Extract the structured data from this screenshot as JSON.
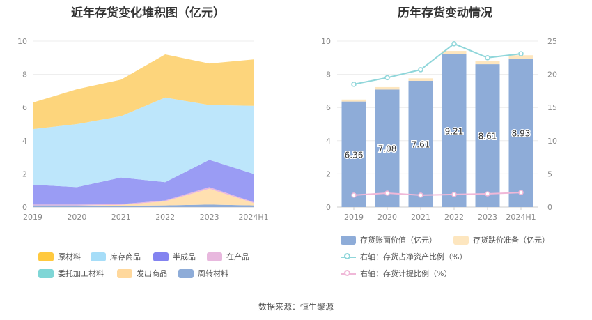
{
  "left_title": "近年存货变化堆积图（亿元）",
  "right_title": "历年存货变动情况",
  "source": "数据来源：恒生聚源",
  "chart_data": [
    {
      "type": "area",
      "stacked": true,
      "title": "近年存货变化堆积图（亿元）",
      "categories": [
        "2019",
        "2020",
        "2021",
        "2022",
        "2023",
        "2024H1"
      ],
      "ylim": [
        0,
        10
      ],
      "yticks": [
        0,
        2,
        4,
        6,
        8,
        10
      ],
      "grid": true,
      "legend_position": "bottom",
      "series": [
        {
          "name": "周转材料",
          "color": "#8eacd8",
          "values": [
            0.1,
            0.1,
            0.08,
            0.1,
            0.15,
            0.1
          ]
        },
        {
          "name": "发出商品",
          "color": "#ffe0b0",
          "values": [
            0.0,
            0.0,
            0.05,
            0.25,
            0.95,
            0.15
          ]
        },
        {
          "name": "委托加工材料",
          "color": "#7fd6d6",
          "values": [
            0.0,
            0.0,
            0.0,
            0.0,
            0.0,
            0.0
          ]
        },
        {
          "name": "在产品",
          "color": "#e8b8de",
          "values": [
            0.05,
            0.05,
            0.05,
            0.05,
            0.1,
            0.05
          ]
        },
        {
          "name": "半成品",
          "color": "#9a9cf4",
          "values": [
            1.2,
            1.05,
            1.6,
            1.1,
            1.65,
            1.7
          ]
        },
        {
          "name": "库存商品",
          "color": "#bde6fb",
          "values": [
            3.35,
            3.8,
            3.7,
            5.1,
            3.3,
            4.1
          ]
        },
        {
          "name": "原材料",
          "color": "#fdd57c",
          "values": [
            1.6,
            2.1,
            2.2,
            2.6,
            2.5,
            2.8
          ]
        }
      ],
      "legend_order": [
        "原材料",
        "库存商品",
        "半成品",
        "在产品",
        "委托加工材料",
        "发出商品",
        "周转材料"
      ],
      "legend_colors": {
        "原材料": "#ffc93f",
        "库存商品": "#a6ddf8",
        "半成品": "#8383f0",
        "在产品": "#e8b8de",
        "委托加工材料": "#7fd6d6",
        "发出商品": "#ffd89c",
        "周转材料": "#8eacd8"
      }
    },
    {
      "type": "bar",
      "stacked": true,
      "title": "历年存货变动情况",
      "categories": [
        "2019",
        "2020",
        "2021",
        "2022",
        "2023",
        "2024H1"
      ],
      "ylim": [
        0,
        10
      ],
      "yticks": [
        0,
        2,
        4,
        6,
        8,
        10
      ],
      "y2lim": [
        0,
        25
      ],
      "y2ticks": [
        0,
        5,
        10,
        15,
        20,
        25
      ],
      "grid": true,
      "legend_position": "bottom",
      "series": [
        {
          "name": "存货账面价值（亿元）",
          "type": "bar",
          "axis": "left",
          "color": "#8eacd8",
          "values": [
            6.36,
            7.08,
            7.61,
            9.21,
            8.61,
            8.93
          ],
          "labels": [
            "6.36",
            "7.08",
            "7.61",
            "9.21",
            "8.61",
            "8.93"
          ]
        },
        {
          "name": "存货跌价准备（亿元）",
          "type": "bar",
          "axis": "left",
          "color": "#fde6bf",
          "values": [
            0.12,
            0.15,
            0.15,
            0.2,
            0.18,
            0.22
          ]
        },
        {
          "name": "右轴：存货占净资产比例（%）",
          "type": "line",
          "axis": "right",
          "color": "#8fd6da",
          "values": [
            18.5,
            19.5,
            20.7,
            24.6,
            22.5,
            23.1
          ]
        },
        {
          "name": "右轴：存货计提比例（%）",
          "type": "line",
          "axis": "right",
          "color": "#f0b8d8",
          "values": [
            1.8,
            2.1,
            1.8,
            1.9,
            2.0,
            2.2
          ]
        }
      ]
    }
  ]
}
